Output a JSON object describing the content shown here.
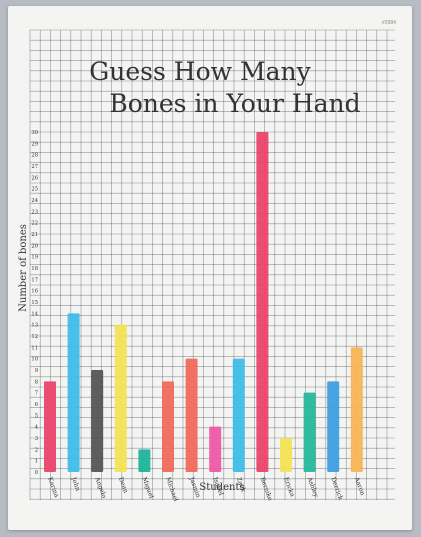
{
  "page": {
    "corner_mark": "#2984"
  },
  "chart_data": {
    "type": "bar",
    "title_line1": "Guess How Many",
    "title_line2": "Bones in Your Hand",
    "ylabel": "Number of bones",
    "xlabel": "Students",
    "ylim": [
      0,
      30
    ],
    "yticks": [
      0,
      1,
      2,
      3,
      4,
      5,
      6,
      7,
      8,
      9,
      10,
      11,
      12,
      13,
      14,
      15,
      16,
      17,
      18,
      19,
      20,
      21,
      22,
      23,
      24,
      25,
      26,
      27,
      28,
      29,
      30
    ],
    "grid": true,
    "categories": [
      "Karina",
      "John",
      "Angelo",
      "Dean",
      "Miguel",
      "Michael",
      "Jasmin",
      "Isabel",
      "Zack",
      "Bernike",
      "Ericka",
      "Ashley",
      "Derrick",
      "Aaron"
    ],
    "values": [
      8,
      14,
      9,
      13,
      2,
      8,
      10,
      4,
      10,
      30,
      3,
      7,
      8,
      11
    ],
    "colors": [
      "#e8456a",
      "#3fbde8",
      "#555555",
      "#f2e254",
      "#1fb39a",
      "#ef6a5c",
      "#ef6a5c",
      "#ee5aa6",
      "#3fbde8",
      "#ea4569",
      "#f2e254",
      "#24b89c",
      "#3f9fe0",
      "#f8b455"
    ]
  }
}
